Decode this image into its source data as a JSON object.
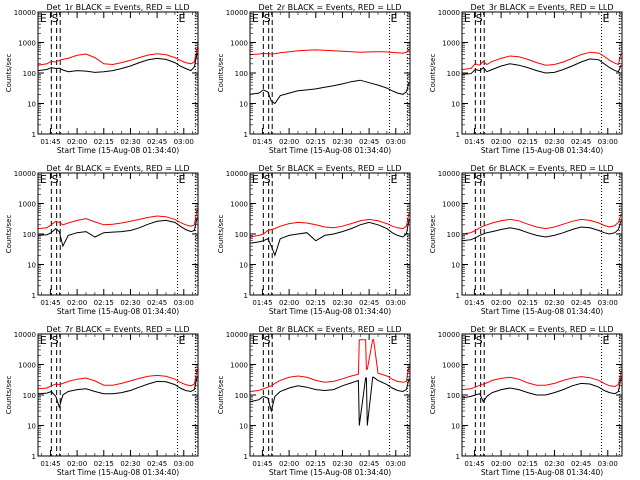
{
  "chart_data": {
    "type": "line",
    "x_tick_labels": [
      "01:45",
      "02:00",
      "02:15",
      "02:30",
      "02:45",
      "03:00"
    ],
    "x_tick_minutes": [
      -10,
      5,
      20,
      35,
      50,
      65
    ],
    "x_range_minutes_from_start": [
      -17,
      73
    ],
    "y_tick_labels": [
      "1",
      "10",
      "100",
      "1000",
      "10000"
    ],
    "y_tick_values": [
      1,
      10,
      100,
      1000,
      10000
    ],
    "ylim": [
      1,
      10000
    ],
    "y_scale": "log",
    "xlabel": "Start Time (15-Aug-08 01:34:40)",
    "ylabel": "Counts/sec",
    "series_colors": {
      "Events": "#000000",
      "LLD": "#ff0000"
    },
    "markers": {
      "E": [
        -16.5,
        61.5
      ],
      "S": [
        -6.5
      ],
      "dashed_lines": [
        -9.5,
        -6.5,
        -4.5
      ],
      "dotted_lines": [
        61.5,
        71.5
      ]
    },
    "panels": [
      {
        "title": "Det_1r BLACK = Events, RED = LLD",
        "x": [
          -17,
          -12,
          -9.5,
          -7,
          -5,
          -3,
          0,
          5,
          10,
          15,
          20,
          25,
          30,
          35,
          40,
          45,
          50,
          55,
          60,
          63,
          66,
          69,
          71,
          72.5
        ],
        "events": [
          120,
          130,
          150,
          140,
          145,
          125,
          110,
          120,
          115,
          105,
          110,
          120,
          140,
          170,
          220,
          270,
          300,
          280,
          220,
          170,
          140,
          120,
          160,
          450
        ],
        "lld": [
          180,
          200,
          240,
          230,
          260,
          280,
          300,
          380,
          420,
          320,
          200,
          190,
          220,
          260,
          320,
          390,
          430,
          400,
          320,
          260,
          220,
          200,
          230,
          650
        ]
      },
      {
        "title": "Det_2r BLACK = Events, RED = LLD",
        "x": [
          -17,
          -12,
          -9.5,
          -7,
          -5,
          -3,
          0,
          5,
          10,
          15,
          20,
          25,
          30,
          35,
          40,
          45,
          50,
          55,
          60,
          63,
          66,
          69,
          71,
          72.5
        ],
        "events": [
          20,
          22,
          28,
          24,
          12,
          10,
          18,
          22,
          26,
          28,
          30,
          34,
          38,
          44,
          52,
          58,
          48,
          40,
          32,
          26,
          22,
          20,
          24,
          50
        ],
        "lld": [
          400,
          420,
          440,
          430,
          420,
          430,
          460,
          500,
          540,
          560,
          570,
          560,
          540,
          520,
          500,
          480,
          490,
          500,
          490,
          470,
          460,
          450,
          470,
          600
        ]
      },
      {
        "title": "Det_3r BLACK = Events, RED = LLD",
        "x": [
          -17,
          -12,
          -9.5,
          -7,
          -5,
          -3,
          0,
          5,
          10,
          15,
          20,
          25,
          30,
          35,
          40,
          45,
          50,
          55,
          60,
          63,
          66,
          69,
          71,
          72.5
        ],
        "events": [
          90,
          95,
          130,
          120,
          150,
          110,
          130,
          170,
          200,
          180,
          150,
          120,
          100,
          105,
          130,
          170,
          230,
          290,
          270,
          200,
          150,
          120,
          110,
          180
        ],
        "lld": [
          130,
          140,
          200,
          180,
          240,
          190,
          240,
          300,
          360,
          340,
          280,
          220,
          180,
          190,
          230,
          300,
          400,
          480,
          450,
          350,
          260,
          210,
          190,
          450
        ]
      },
      {
        "title": "Det_4r BLACK = Events, RED = LLD",
        "x": [
          -17,
          -12,
          -9.5,
          -7,
          -5,
          -3,
          0,
          5,
          10,
          15,
          20,
          25,
          30,
          35,
          40,
          45,
          50,
          55,
          60,
          63,
          66,
          69,
          71,
          72.5
        ],
        "events": [
          90,
          95,
          110,
          150,
          120,
          40,
          90,
          110,
          120,
          80,
          110,
          115,
          120,
          130,
          160,
          210,
          260,
          280,
          240,
          180,
          140,
          120,
          130,
          350
        ],
        "lld": [
          150,
          160,
          200,
          260,
          240,
          200,
          230,
          280,
          320,
          250,
          200,
          210,
          230,
          260,
          300,
          350,
          390,
          370,
          300,
          240,
          200,
          180,
          200,
          650
        ]
      },
      {
        "title": "Det_5r BLACK = Events, RED = LLD",
        "x": [
          -17,
          -12,
          -9.5,
          -7,
          -5,
          -3,
          0,
          5,
          10,
          15,
          20,
          25,
          30,
          35,
          40,
          45,
          50,
          55,
          60,
          63,
          66,
          69,
          71,
          72.5
        ],
        "events": [
          50,
          55,
          60,
          70,
          40,
          20,
          70,
          90,
          100,
          110,
          60,
          90,
          100,
          120,
          150,
          200,
          240,
          200,
          150,
          110,
          90,
          80,
          100,
          300
        ],
        "lld": [
          80,
          90,
          100,
          130,
          140,
          150,
          180,
          220,
          240,
          230,
          200,
          170,
          160,
          180,
          220,
          270,
          300,
          270,
          220,
          180,
          160,
          150,
          180,
          500
        ]
      },
      {
        "title": "Det_6r BLACK = Events, RED = LLD",
        "x": [
          -17,
          -12,
          -9.5,
          -7,
          -5,
          -3,
          0,
          5,
          10,
          15,
          20,
          25,
          30,
          35,
          40,
          45,
          50,
          55,
          60,
          63,
          66,
          69,
          71,
          72.5
        ],
        "events": [
          60,
          65,
          75,
          90,
          100,
          110,
          120,
          140,
          160,
          140,
          110,
          90,
          80,
          90,
          110,
          140,
          170,
          160,
          130,
          110,
          100,
          110,
          140,
          280
        ],
        "lld": [
          100,
          110,
          130,
          160,
          180,
          200,
          230,
          270,
          300,
          270,
          210,
          170,
          150,
          170,
          210,
          260,
          300,
          280,
          230,
          190,
          170,
          190,
          240,
          450
        ]
      },
      {
        "title": "Det_7r BLACK = Events, RED = LLD",
        "x": [
          -17,
          -12,
          -9.5,
          -7,
          -5,
          -3,
          0,
          5,
          10,
          15,
          20,
          25,
          30,
          35,
          40,
          45,
          50,
          55,
          60,
          63,
          66,
          69,
          71,
          72.5
        ],
        "events": [
          110,
          115,
          130,
          90,
          40,
          100,
          130,
          150,
          160,
          130,
          110,
          110,
          120,
          140,
          180,
          230,
          280,
          270,
          220,
          170,
          140,
          130,
          150,
          400
        ],
        "lld": [
          160,
          170,
          200,
          230,
          220,
          240,
          280,
          330,
          360,
          290,
          210,
          210,
          240,
          290,
          350,
          410,
          440,
          410,
          330,
          260,
          220,
          200,
          230,
          700
        ]
      },
      {
        "title": "Det_8r BLACK = Events, RED = LLD",
        "x": [
          -17,
          -12,
          -9.5,
          -7,
          -5,
          -3,
          0,
          5,
          10,
          15,
          20,
          25,
          30,
          35,
          40,
          44,
          44.5,
          48,
          48.5,
          49,
          52,
          52.5,
          55,
          60,
          63,
          66,
          69,
          71,
          72.5
        ],
        "events": [
          60,
          70,
          90,
          80,
          30,
          90,
          130,
          170,
          200,
          180,
          150,
          140,
          150,
          200,
          250,
          300,
          10,
          360,
          360,
          10,
          380,
          380,
          300,
          220,
          170,
          140,
          130,
          150,
          350
        ],
        "lld": [
          130,
          140,
          160,
          180,
          200,
          240,
          300,
          380,
          420,
          380,
          300,
          260,
          280,
          340,
          420,
          480,
          6500,
          6500,
          700,
          700,
          6500,
          6500,
          520,
          420,
          330,
          280,
          260,
          280,
          900
        ]
      },
      {
        "title": "Det_9r BLACK = Events, RED = LLD",
        "x": [
          -17,
          -12,
          -9.5,
          -7,
          -5,
          -3,
          0,
          5,
          10,
          15,
          20,
          25,
          30,
          35,
          40,
          45,
          50,
          55,
          60,
          63,
          66,
          69,
          71,
          72.5
        ],
        "events": [
          80,
          90,
          100,
          110,
          60,
          90,
          120,
          150,
          170,
          150,
          120,
          100,
          100,
          120,
          150,
          200,
          240,
          230,
          180,
          140,
          120,
          110,
          130,
          380
        ],
        "lld": [
          150,
          160,
          180,
          210,
          230,
          250,
          300,
          350,
          380,
          330,
          250,
          210,
          210,
          240,
          300,
          360,
          400,
          370,
          300,
          240,
          200,
          190,
          220,
          600
        ]
      }
    ]
  }
}
